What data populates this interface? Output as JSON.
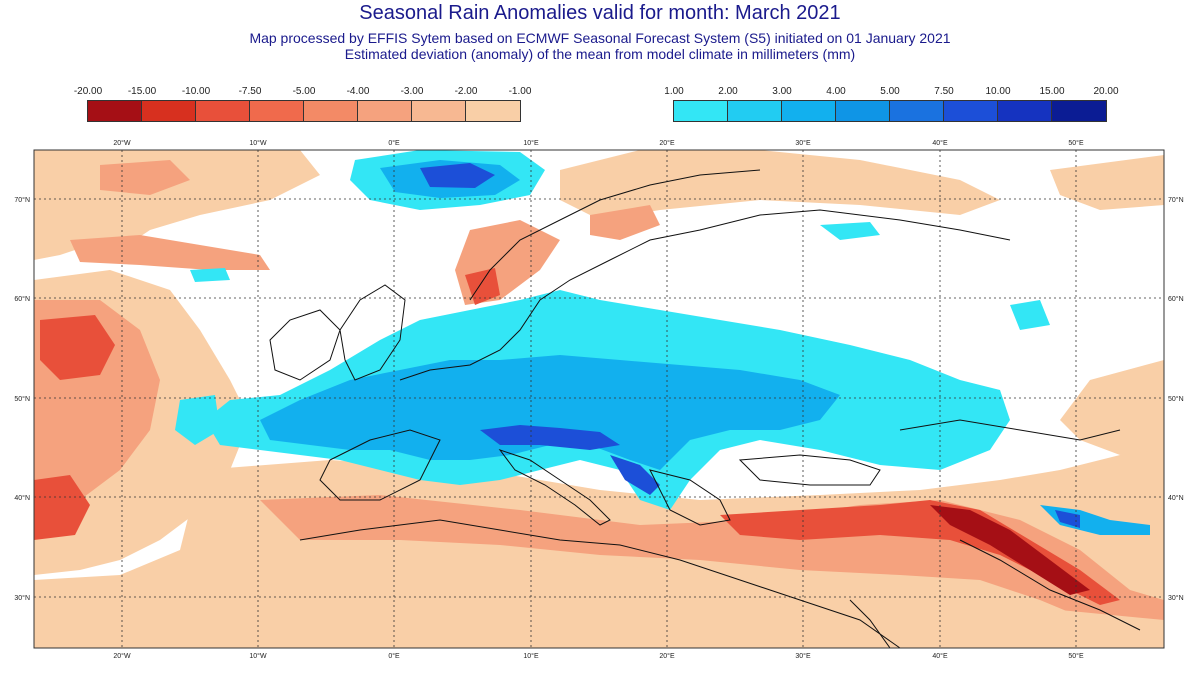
{
  "title": "Seasonal Rain Anomalies valid for month: March 2021",
  "subtitle_1": "Map processed by EFFIS Sytem based on ECMWF Seasonal Forecast System (S5) initiated on 01 January 2021",
  "subtitle_2": "Estimated deviation (anomaly) of the mean from model climate in millimeters (mm)",
  "legend_negative": {
    "labels": [
      "-20.00",
      "-15.00",
      "-10.00",
      "-7.50",
      "-5.00",
      "-4.00",
      "-3.00",
      "-2.00",
      "-1.00"
    ],
    "colors": [
      "#a50f15",
      "#d7301f",
      "#e8503a",
      "#f06a4c",
      "#f38a66",
      "#f5a27e",
      "#f7b892",
      "#f9cfa7"
    ]
  },
  "legend_positive": {
    "labels": [
      "1.00",
      "2.00",
      "3.00",
      "4.00",
      "5.00",
      "7.50",
      "10.00",
      "15.00",
      "20.00"
    ],
    "colors": [
      "#33e6f5",
      "#22ccf2",
      "#12b0ee",
      "#0f95e6",
      "#1a72e0",
      "#1c4fd8",
      "#1533c0",
      "#0b1c94"
    ]
  },
  "longitude_labels": [
    "20°W",
    "10°W",
    "0°E",
    "10°E",
    "20°E",
    "30°E",
    "40°E",
    "50°E"
  ],
  "latitude_labels": [
    "70°N",
    "60°N",
    "50°N",
    "40°N",
    "30°N"
  ],
  "colors": {
    "title": "#1a1a8c",
    "light_negative": "#f9cfa7",
    "moderate_negative": "#f5a27e",
    "strong_negative": "#e8503a",
    "light_positive": "#33e6f5",
    "moderate_positive": "#12b0ee",
    "strong_positive": "#1c4fd8"
  }
}
